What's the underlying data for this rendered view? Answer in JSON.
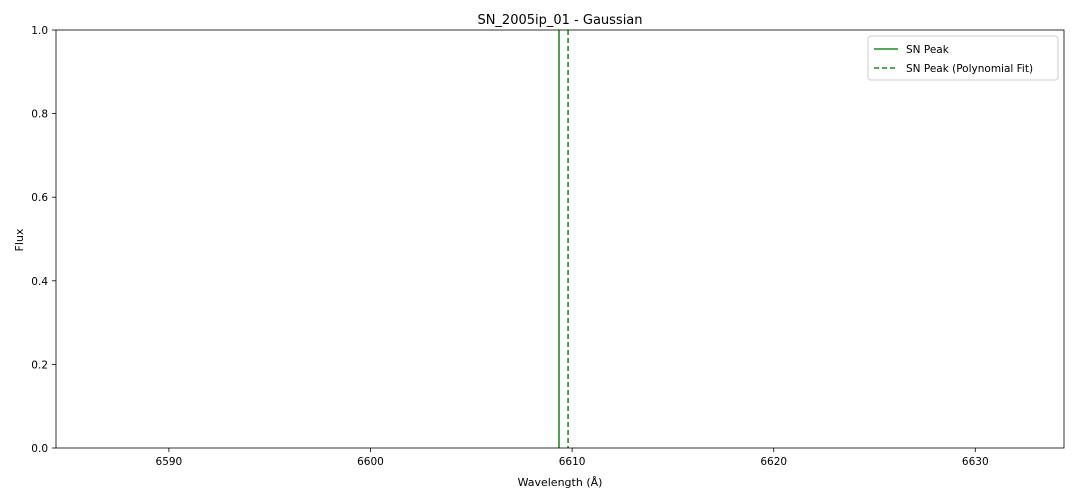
{
  "chart_data": {
    "type": "line",
    "title": "SN_2005ip_01 - Gaussian",
    "xlabel": "Wavelength (Å)",
    "ylabel": "Flux",
    "xlim": [
      6584.4,
      6634.4
    ],
    "ylim": [
      0.0,
      1.0
    ],
    "xticks": [
      {
        "value": 6590,
        "label": "6590"
      },
      {
        "value": 6600,
        "label": "6600"
      },
      {
        "value": 6610,
        "label": "6610"
      },
      {
        "value": 6620,
        "label": "6620"
      },
      {
        "value": 6630,
        "label": "6630"
      }
    ],
    "yticks": [
      {
        "value": 0.0,
        "label": "0.0"
      },
      {
        "value": 0.2,
        "label": "0.2"
      },
      {
        "value": 0.4,
        "label": "0.4"
      },
      {
        "value": 0.6,
        "label": "0.6"
      },
      {
        "value": 0.8,
        "label": "0.8"
      },
      {
        "value": 1.0,
        "label": "1.0"
      }
    ],
    "grid": false,
    "legend_position": "top-right",
    "series": [
      {
        "name": "SN Peak",
        "x": 6609.35,
        "style": "solid",
        "color": "#228b22"
      },
      {
        "name": "SN Peak (Polynomial Fit)",
        "x": 6609.8,
        "style": "dashed",
        "color": "#228b22"
      }
    ]
  }
}
